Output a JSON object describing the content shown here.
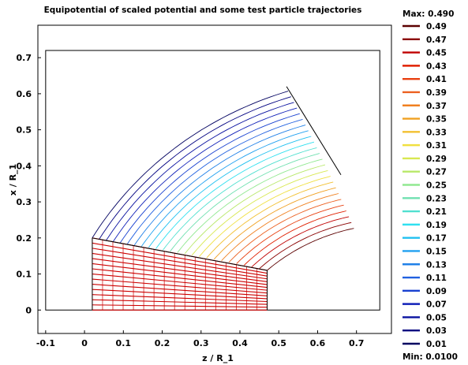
{
  "chart_data": {
    "type": "contour",
    "title": "Equipotential of scaled potential and some test particle trajectories",
    "xlabel": "z / R_1",
    "ylabel": "x / R_1",
    "xlim": [
      -0.12,
      0.79
    ],
    "ylim": [
      -0.065,
      0.79
    ],
    "x_ticks": [
      "-0.1",
      "0",
      "0.1",
      "0.2",
      "0.3",
      "0.4",
      "0.5",
      "0.6",
      "0.7"
    ],
    "y_ticks": [
      "0",
      "0.1",
      "0.2",
      "0.3",
      "0.4",
      "0.5",
      "0.6",
      "0.7"
    ],
    "boundary_box": {
      "z": [
        -0.1,
        0.76
      ],
      "x": [
        0.0,
        0.72
      ]
    },
    "sector": {
      "z_origin": 0.0,
      "x_origin": 0.0,
      "annulus_ri": 0.2,
      "annulus_ro": 0.76,
      "duct_z": 0.47
    },
    "colorbar": {
      "max_label": "Max: 0.490",
      "min_label": "Min: 0.0100",
      "levels": [
        "0.49",
        "0.47",
        "0.45",
        "0.43",
        "0.41",
        "0.39",
        "0.37",
        "0.35",
        "0.33",
        "0.31",
        "0.29",
        "0.27",
        "0.25",
        "0.23",
        "0.21",
        "0.19",
        "0.17",
        "0.15",
        "0.13",
        "0.11",
        "0.09",
        "0.07",
        "0.05",
        "0.03",
        "0.01"
      ],
      "colors": [
        "#5c0000",
        "#8a0000",
        "#c00000",
        "#e02000",
        "#e84010",
        "#ec6020",
        "#f08020",
        "#f0a020",
        "#f2c030",
        "#f0e040",
        "#d8e850",
        "#b8e868",
        "#90e890",
        "#70e0b0",
        "#50e0d0",
        "#30e0f0",
        "#20c0f0",
        "#20a0f0",
        "#2080e8",
        "#2060e0",
        "#1840d0",
        "#1020b8",
        "#0810a0",
        "#000080",
        "#000060"
      ]
    },
    "contour_levels": 25,
    "trajectory_color": "#cc0000",
    "grid": false
  }
}
